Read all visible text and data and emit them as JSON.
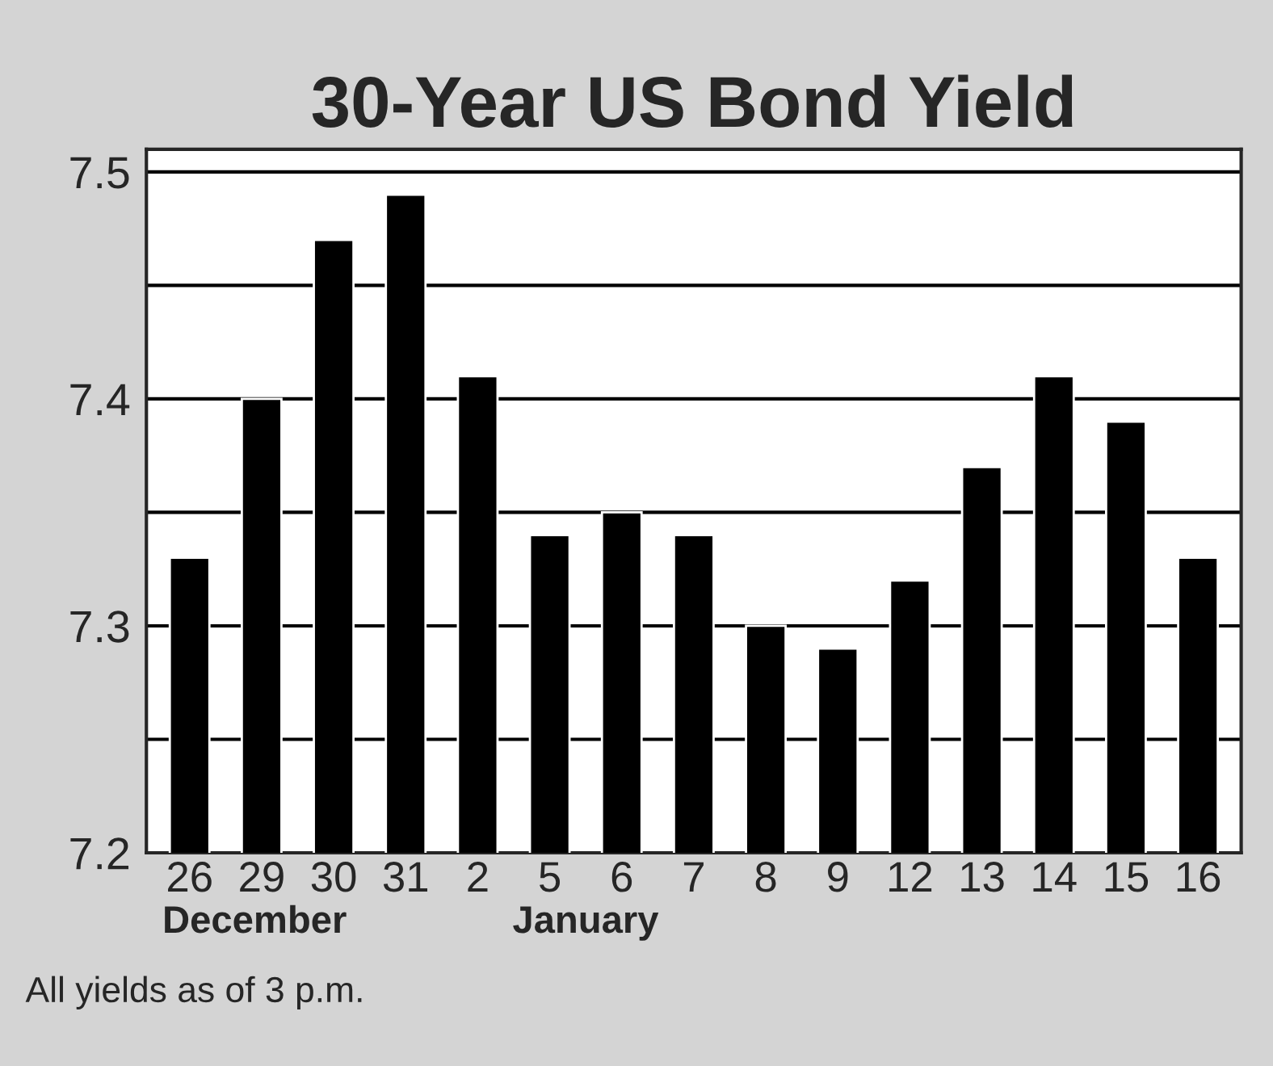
{
  "chart_data": {
    "type": "bar",
    "title": "30-Year US Bond Yield",
    "categories": [
      "26",
      "29",
      "30",
      "31",
      "2",
      "5",
      "6",
      "7",
      "8",
      "9",
      "12",
      "13",
      "14",
      "15",
      "16"
    ],
    "values": [
      7.33,
      7.4,
      7.47,
      7.49,
      7.41,
      7.34,
      7.35,
      7.34,
      7.3,
      7.29,
      7.32,
      7.37,
      7.41,
      7.39,
      7.33
    ],
    "color": "#000000",
    "ylim": [
      7.2,
      7.51
    ],
    "yticks": [
      7.2,
      {
        "value": 7.25,
        "label": null
      },
      7.3,
      {
        "value": 7.35,
        "label": null
      },
      7.4,
      {
        "value": 7.45,
        "label": null
      },
      7.5
    ],
    "grid": "y",
    "annotations": [
      "December",
      "January",
      "All yields as of 3 p.m."
    ]
  }
}
